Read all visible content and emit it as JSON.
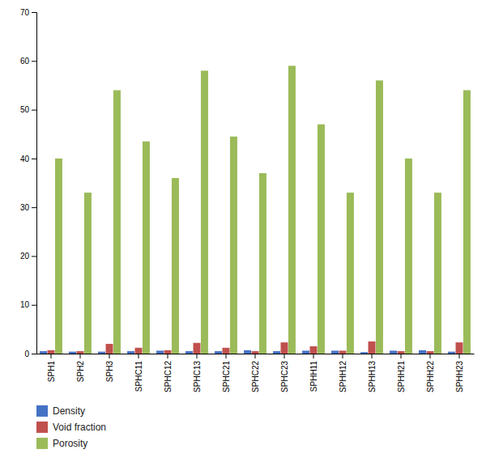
{
  "chart_data": {
    "type": "bar",
    "categories": [
      "SPH1",
      "SPH2",
      "SPH3",
      "SPHC11",
      "SPHC12",
      "SPHC13",
      "SPHC21",
      "SPHC22",
      "SPHC23",
      "SPHH11",
      "SPHH12",
      "SPHH13",
      "SPHH21",
      "SPHH22",
      "SPHH23"
    ],
    "series": [
      {
        "name": "Density",
        "color": "#4472c4",
        "values": [
          0.5,
          0.4,
          0.4,
          0.5,
          0.6,
          0.5,
          0.5,
          0.7,
          0.5,
          0.6,
          0.6,
          0.3,
          0.6,
          0.7,
          0.4
        ]
      },
      {
        "name": "Void fraction",
        "color": "#c0504d",
        "values": [
          0.7,
          0.5,
          2.0,
          1.2,
          0.7,
          2.2,
          1.2,
          0.5,
          2.3,
          1.5,
          0.6,
          2.5,
          0.5,
          0.5,
          2.3
        ]
      },
      {
        "name": "Porosity",
        "color": "#9bbb59",
        "values": [
          40.0,
          33.0,
          54.0,
          43.5,
          36.0,
          58.0,
          44.5,
          37.0,
          59.0,
          47.0,
          33.0,
          56.0,
          40.0,
          33.0,
          54.0
        ]
      }
    ],
    "ylim": [
      0,
      70
    ],
    "yticks": [
      0,
      10,
      20,
      30,
      40,
      50,
      60,
      70
    ],
    "grid": false,
    "legend": "bottom"
  }
}
